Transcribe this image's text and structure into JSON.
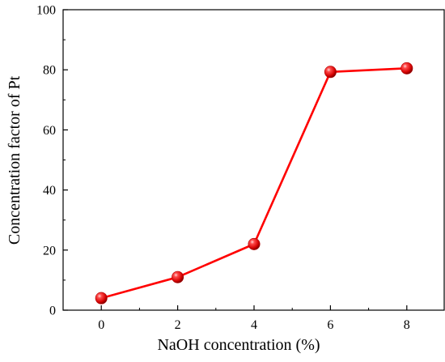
{
  "chart_data": {
    "type": "line",
    "title": "",
    "xlabel": "NaOH concentration (%)",
    "ylabel": "Concentration factor of Pt",
    "xlim": [
      -1,
      9
    ],
    "ylim": [
      0,
      100
    ],
    "x_ticks": [
      0,
      2,
      4,
      6,
      8
    ],
    "y_ticks": [
      0,
      20,
      40,
      60,
      80,
      100
    ],
    "x_minor_ticks": [
      1,
      3,
      5,
      7
    ],
    "y_minor_ticks": [
      10,
      30,
      50,
      70,
      90
    ],
    "grid": false,
    "legend": "none",
    "series": [
      {
        "x": [
          0,
          2,
          4,
          6,
          8
        ],
        "values": [
          4,
          11,
          22,
          79.3,
          80.5
        ],
        "line_color": "#ff0000",
        "marker": "sphere",
        "marker_color": "#e80000"
      }
    ]
  }
}
